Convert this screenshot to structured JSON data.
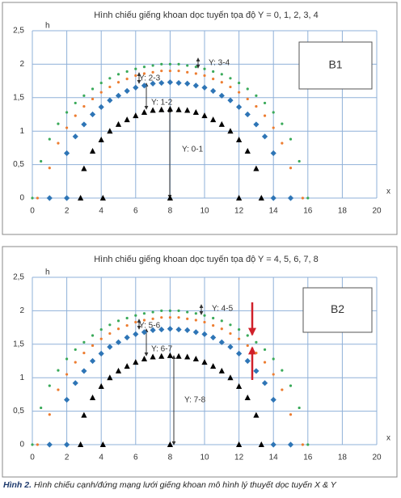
{
  "chart_data": [
    {
      "type": "scatter",
      "title": "Hình chiếu giếng khoan dọc tuyến tọa độ Y = 0, 1, 2, 3, 4",
      "x_label": "x",
      "y_label": "h",
      "box_label": "B1",
      "annotations": [
        "Y: 3-4",
        "Y: 2-3",
        "Y: 1-2",
        "Y: 0-1"
      ],
      "xlim": [
        0,
        20
      ],
      "ylim": [
        0,
        2.5
      ],
      "grid": true,
      "xticks": [
        0,
        2,
        4,
        6,
        8,
        10,
        12,
        14,
        16,
        18,
        20
      ],
      "yticks": [
        0,
        {
          "value": 0.5,
          "label": "0,5"
        },
        1,
        {
          "value": 1.5,
          "label": "1,5"
        },
        2,
        {
          "value": 2.5,
          "label": "2,5"
        }
      ],
      "series": [
        {
          "color": "#3aaa5a",
          "marker": "circle",
          "x": [
            0,
            0.5,
            1,
            1.5,
            2,
            2.5,
            3,
            3.5,
            4,
            4.5,
            5,
            5.5,
            6,
            6.5,
            7,
            7.5,
            8,
            8.5,
            9,
            9.5,
            10,
            10.5,
            11,
            11.5,
            12,
            12.5,
            13,
            13.5,
            14,
            14.5,
            15,
            15.5,
            16
          ],
          "values": [
            0,
            0.55,
            0.88,
            1.11,
            1.28,
            1.42,
            1.53,
            1.63,
            1.72,
            1.79,
            1.85,
            1.89,
            1.93,
            1.96,
            1.98,
            2.0,
            2.0,
            2.0,
            1.98,
            1.96,
            1.93,
            1.89,
            1.85,
            1.79,
            1.72,
            1.63,
            1.53,
            1.42,
            1.28,
            1.11,
            0.88,
            0.55,
            0
          ]
        },
        {
          "color": "#ed7d31",
          "marker": "circle",
          "x": [
            0.3,
            1,
            1.5,
            2,
            2.5,
            3,
            3.5,
            4,
            4.5,
            5,
            5.5,
            6,
            6.5,
            7,
            7.5,
            8,
            8.5,
            9,
            9.5,
            10,
            10.5,
            11,
            11.5,
            12,
            12.5,
            13,
            13.5,
            14,
            14.5,
            15,
            15.7
          ],
          "values": [
            0,
            0.45,
            0.82,
            1.05,
            1.23,
            1.37,
            1.48,
            1.58,
            1.66,
            1.73,
            1.78,
            1.83,
            1.86,
            1.88,
            1.9,
            1.9,
            1.9,
            1.88,
            1.86,
            1.83,
            1.78,
            1.73,
            1.66,
            1.58,
            1.48,
            1.37,
            1.23,
            1.05,
            0.82,
            0.45,
            0
          ]
        },
        {
          "color": "#2e75b6",
          "marker": "diamond",
          "x": [
            1,
            2,
            2,
            2.5,
            3,
            3.5,
            4,
            4.5,
            5,
            5.5,
            6,
            6.5,
            7,
            7.5,
            8,
            8.5,
            9,
            9.5,
            10,
            10.5,
            11,
            11.5,
            12,
            12.5,
            13,
            13.5,
            14,
            14,
            15
          ],
          "values": [
            0,
            0,
            0.67,
            0.92,
            1.1,
            1.25,
            1.36,
            1.46,
            1.53,
            1.6,
            1.65,
            1.68,
            1.71,
            1.72,
            1.73,
            1.72,
            1.71,
            1.68,
            1.65,
            1.6,
            1.53,
            1.46,
            1.36,
            1.25,
            1.1,
            0.92,
            0.67,
            0,
            0
          ]
        },
        {
          "color": "#000000",
          "marker": "triangle",
          "x": [
            2.8,
            3,
            3.5,
            4,
            4.1,
            4.5,
            5,
            5.5,
            6,
            6.5,
            7,
            7.5,
            8,
            8,
            8.5,
            9,
            9.5,
            10,
            10.5,
            11,
            11.5,
            12,
            12,
            12.5,
            13,
            13.3
          ],
          "values": [
            0,
            0.44,
            0.7,
            0.87,
            0,
            1.0,
            1.1,
            1.17,
            1.23,
            1.28,
            1.31,
            1.32,
            1.33,
            0,
            1.32,
            1.31,
            1.28,
            1.23,
            1.17,
            1.1,
            1.0,
            0.87,
            0,
            0.7,
            0.44,
            0
          ]
        }
      ]
    },
    {
      "type": "scatter",
      "title": "Hình chiếu giếng khoan dọc tuyến tọa độ Y = 4, 5, 6, 7, 8",
      "x_label": "x",
      "y_label": "h",
      "box_label": "B2",
      "annotations": [
        "Y: 4-5",
        "Y: 5-6",
        "Y: 6-7",
        "Y: 7-8"
      ],
      "xlim": [
        0,
        20
      ],
      "ylim": [
        0,
        2.5
      ],
      "grid": true,
      "xticks": [
        0,
        2,
        4,
        6,
        8,
        10,
        12,
        14,
        16,
        18,
        20
      ],
      "yticks": [
        0,
        {
          "value": 0.5,
          "label": "0,5"
        },
        1,
        {
          "value": 1.5,
          "label": "1,5"
        },
        2,
        {
          "value": 2.5,
          "label": "2,5"
        }
      ],
      "series": [
        {
          "color": "#3aaa5a",
          "marker": "circle",
          "x": [
            0,
            0.5,
            1,
            1.5,
            2,
            2.5,
            3,
            3.5,
            4,
            4.5,
            5,
            5.5,
            6,
            6.5,
            7,
            7.5,
            8,
            8.5,
            9,
            9.5,
            10,
            10.5,
            11,
            11.5,
            12,
            12.5,
            13,
            13.5,
            14,
            14.5,
            15,
            15.5,
            16
          ],
          "values": [
            0,
            0.55,
            0.88,
            1.11,
            1.28,
            1.42,
            1.53,
            1.63,
            1.72,
            1.79,
            1.85,
            1.89,
            1.93,
            1.96,
            1.98,
            2.0,
            2.0,
            2.0,
            1.98,
            1.96,
            1.93,
            1.89,
            1.85,
            1.79,
            1.72,
            1.63,
            1.53,
            1.42,
            1.28,
            1.11,
            0.88,
            0.55,
            0
          ]
        },
        {
          "color": "#ed7d31",
          "marker": "circle",
          "x": [
            0.3,
            1,
            1.5,
            2,
            2.5,
            3,
            3.5,
            4,
            4.5,
            5,
            5.5,
            6,
            6.5,
            7,
            7.5,
            8,
            8.5,
            9,
            9.5,
            10,
            10.5,
            11,
            11.5,
            12,
            12.5,
            13,
            13.5,
            14,
            14.5,
            15,
            15.7
          ],
          "values": [
            0,
            0.45,
            0.82,
            1.05,
            1.23,
            1.37,
            1.48,
            1.58,
            1.66,
            1.73,
            1.78,
            1.83,
            1.86,
            1.88,
            1.9,
            1.9,
            1.9,
            1.88,
            1.86,
            1.83,
            1.78,
            1.73,
            1.66,
            1.58,
            1.48,
            1.37,
            1.23,
            1.05,
            0.82,
            0.45,
            0
          ]
        },
        {
          "color": "#2e75b6",
          "marker": "diamond",
          "x": [
            1,
            2,
            2,
            2.5,
            3,
            3.5,
            4,
            4.5,
            5,
            5.5,
            6,
            6.5,
            7,
            7.5,
            8,
            8.5,
            9,
            9.5,
            10,
            10.5,
            11,
            11.5,
            12,
            12.5,
            13,
            13.5,
            14,
            14,
            15
          ],
          "values": [
            0,
            0,
            0.67,
            0.92,
            1.1,
            1.25,
            1.36,
            1.46,
            1.53,
            1.6,
            1.65,
            1.68,
            1.71,
            1.72,
            1.73,
            1.72,
            1.71,
            1.68,
            1.65,
            1.6,
            1.53,
            1.46,
            1.36,
            1.25,
            1.1,
            0.92,
            0.67,
            0,
            0
          ]
        },
        {
          "color": "#000000",
          "marker": "triangle",
          "x": [
            2.8,
            3,
            3.5,
            4,
            4.1,
            4.5,
            5,
            5.5,
            6,
            6.5,
            7,
            7.5,
            8,
            8,
            8.5,
            9,
            9.5,
            10,
            10.5,
            11,
            11.5,
            12,
            12,
            12.5,
            13,
            13.3
          ],
          "values": [
            0,
            0.44,
            0.7,
            0.87,
            0,
            1.0,
            1.1,
            1.17,
            1.23,
            1.28,
            1.31,
            1.32,
            1.33,
            0,
            1.32,
            1.31,
            1.28,
            1.23,
            1.17,
            1.1,
            1.0,
            0.87,
            0,
            0.7,
            0.44,
            0
          ]
        }
      ]
    }
  ],
  "caption": {
    "label": "Hình 2.",
    "text": "Hình chiếu cạnh/đứng mạng lưới giếng khoan mô hình lý thuyết dọc tuyến X & Y"
  }
}
